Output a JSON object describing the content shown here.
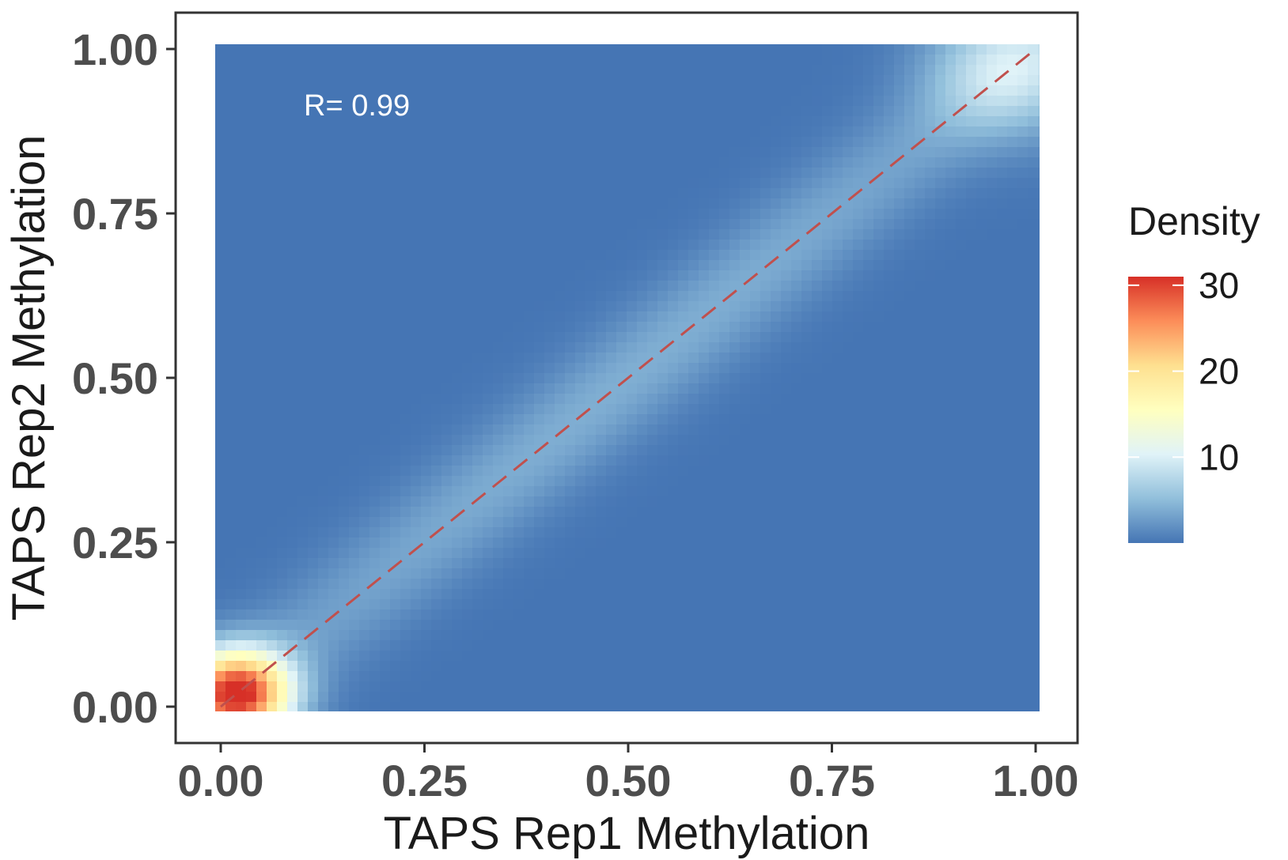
{
  "chart_data": {
    "type": "heatmap",
    "subtype": "2d-density",
    "title": "",
    "xlabel": "TAPS Rep1 Methylation",
    "ylabel": "TAPS Rep2 Methylation",
    "xlim": [
      0,
      1
    ],
    "ylim": [
      0,
      1
    ],
    "x_ticks": [
      "0.00",
      "0.25",
      "0.50",
      "0.75",
      "1.00"
    ],
    "y_ticks": [
      "0.00",
      "0.25",
      "0.50",
      "0.75",
      "1.00"
    ],
    "annotation": "R= 0.99",
    "reference_line": {
      "style": "dashed",
      "color": "#c0504d",
      "from": [
        0,
        0
      ],
      "to": [
        1,
        1
      ]
    },
    "legend": {
      "title": "Density",
      "placement": "right",
      "min": 0,
      "max": 31,
      "ticks": [
        "10",
        "20",
        "30"
      ],
      "tick_values": [
        10,
        20,
        30
      ],
      "colors": [
        "#4575b4",
        "#91bfdb",
        "#e0f3f8",
        "#ffffbf",
        "#fee090",
        "#fc8d59",
        "#d73027"
      ]
    },
    "density_peaks": [
      {
        "x": 0.02,
        "y": 0.02,
        "density": 31
      },
      {
        "x": 0.97,
        "y": 0.97,
        "density": 8
      }
    ],
    "diagonal_ridge_density": 4,
    "background_density": 0,
    "grid": false
  }
}
